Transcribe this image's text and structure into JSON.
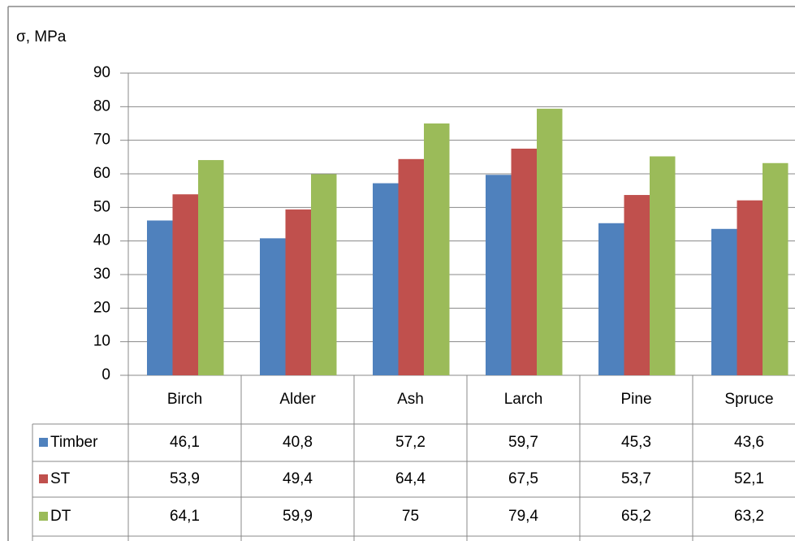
{
  "chart_data": {
    "type": "bar",
    "y_label": "σ, MPa",
    "categories": [
      "Birch",
      "Alder",
      "Ash",
      "Larch",
      "Pine",
      "Spruce"
    ],
    "series": [
      {
        "name": "Timber",
        "color": "#4f81bd",
        "values": [
          46.1,
          40.8,
          57.2,
          59.7,
          45.3,
          43.6
        ],
        "value_labels": [
          "46,1",
          "40,8",
          "57,2",
          "59,7",
          "45,3",
          "43,6"
        ]
      },
      {
        "name": "ST",
        "color": "#c0504d",
        "values": [
          53.9,
          49.4,
          64.4,
          67.5,
          53.7,
          52.1
        ],
        "value_labels": [
          "53,9",
          "49,4",
          "64,4",
          "67,5",
          "53,7",
          "52,1"
        ]
      },
      {
        "name": "DT",
        "color": "#9bbb59",
        "values": [
          64.1,
          59.9,
          75,
          79.4,
          65.2,
          63.2
        ],
        "value_labels": [
          "64,1",
          "59,9",
          "75",
          "79,4",
          "65,2",
          "63,2"
        ]
      }
    ],
    "ylim": [
      0,
      90
    ],
    "yticks": [
      0,
      10,
      20,
      30,
      40,
      50,
      60,
      70,
      80,
      90
    ],
    "grid": true
  }
}
